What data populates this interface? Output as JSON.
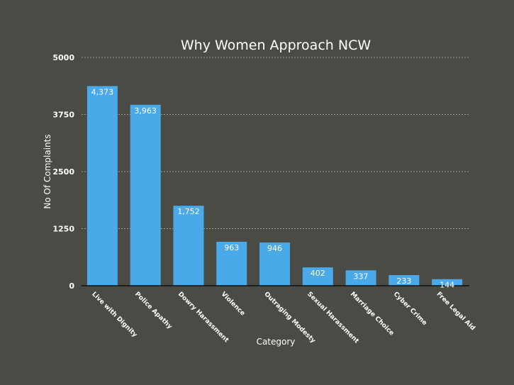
{
  "chart_data": {
    "type": "bar",
    "title": "Why Women Approach NCW",
    "xlabel": "Category",
    "ylabel": "No Of Complaints",
    "ylim": [
      0,
      5000
    ],
    "yticks": [
      "0",
      "1250",
      "2500",
      "3750",
      "5000"
    ],
    "categories": [
      "Live with Dignity",
      "Police Apathy",
      "Dowry Harassment",
      "Violence",
      "Outraging Modesty",
      "Sexual Harassment",
      "Marriage Choice",
      "Cyber Crime",
      "Free Legal Aid"
    ],
    "values": [
      4373,
      3963,
      1752,
      963,
      946,
      402,
      337,
      233,
      144
    ],
    "data_labels": [
      "4,373",
      "3,963",
      "1,752",
      "963",
      "946",
      "402",
      "337",
      "233",
      "144"
    ],
    "grid": true,
    "bar_color": "#4aa9e8",
    "background_color": "#4b4b45"
  }
}
